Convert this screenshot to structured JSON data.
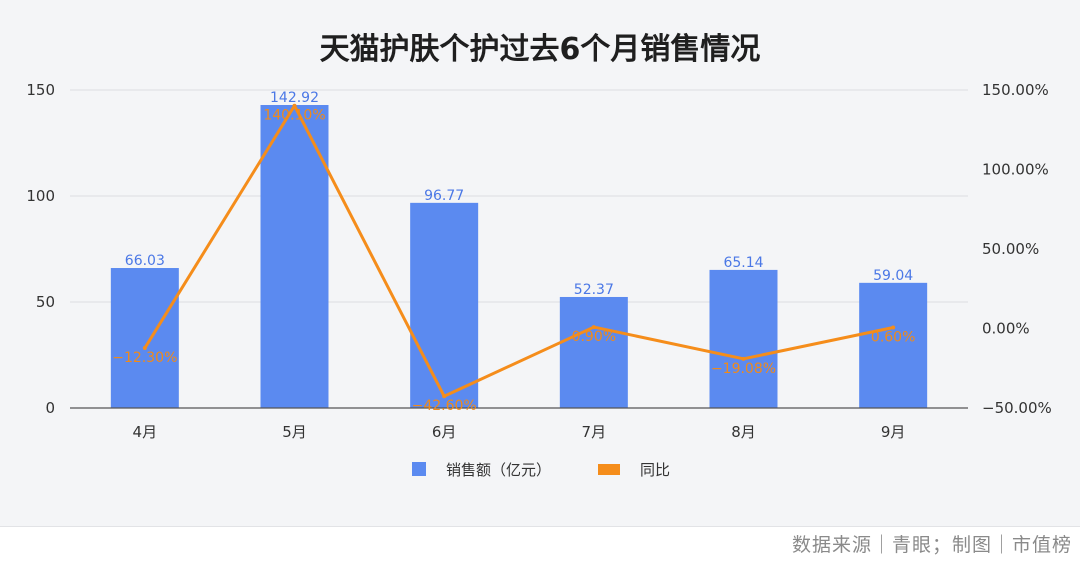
{
  "chart_data": {
    "type": "bar",
    "title": "天猫护肤个护过去6个月销售情况",
    "categories": [
      "4月",
      "5月",
      "6月",
      "7月",
      "8月",
      "9月"
    ],
    "series": [
      {
        "name": "销售额（亿元）",
        "type": "bar",
        "axis": "left",
        "values": [
          66.03,
          142.92,
          96.77,
          52.37,
          65.14,
          59.04
        ],
        "labels": [
          "66.03",
          "142.92",
          "96.77",
          "52.37",
          "65.14",
          "59.04"
        ],
        "color": "#5b8af0"
      },
      {
        "name": "同比",
        "type": "line",
        "axis": "right",
        "values": [
          -12.3,
          140.1,
          -42.6,
          0.9,
          -19.08,
          0.6
        ],
        "labels": [
          "−12.30%",
          "140.10%",
          "−42.60%",
          "0.90%",
          "−19.08%",
          "0.60%"
        ],
        "color": "#f58d1b"
      }
    ],
    "left_axis": {
      "ylim": [
        0,
        150
      ],
      "ticks": [
        "0",
        "50",
        "100",
        "150"
      ]
    },
    "right_axis": {
      "ylim": [
        -50,
        150
      ],
      "ticks": [
        "−50.00%",
        "0.00%",
        "50.00%",
        "100.00%",
        "150.00%"
      ]
    },
    "grid": true,
    "legend": "bottom-center"
  },
  "footer": {
    "source": "数据来源｜青眼；制图｜市值榜"
  }
}
